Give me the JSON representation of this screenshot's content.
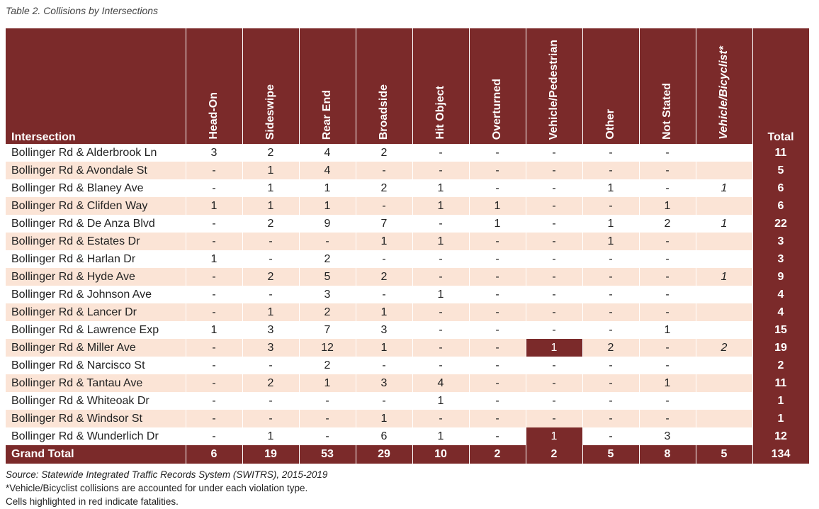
{
  "caption": "Table 2. Collisions by Intersections",
  "headers": {
    "intersection": "Intersection",
    "types": [
      "Head-On",
      "Sideswipe",
      "Rear End",
      "Broadside",
      "Hit Object",
      "Overturned",
      "Vehicle/Pedestrian",
      "Other",
      "Not Stated",
      "Vehicle/Bicyclist*"
    ],
    "total": "Total"
  },
  "rows": [
    {
      "name": "Bollinger Rd & Alderbrook Ln",
      "cells": [
        "3",
        "2",
        "4",
        "2",
        "-",
        "-",
        "-",
        "-",
        "-",
        ""
      ],
      "total": "11"
    },
    {
      "name": "Bollinger Rd & Avondale St",
      "cells": [
        "-",
        "1",
        "4",
        "-",
        "-",
        "-",
        "-",
        "-",
        "-",
        ""
      ],
      "total": "5"
    },
    {
      "name": "Bollinger Rd & Blaney Ave",
      "cells": [
        "-",
        "1",
        "1",
        "2",
        "1",
        "-",
        "-",
        "1",
        "-",
        "1"
      ],
      "total": "6"
    },
    {
      "name": "Bollinger Rd & Clifden Way",
      "cells": [
        "1",
        "1",
        "1",
        "-",
        "1",
        "1",
        "-",
        "-",
        "1",
        ""
      ],
      "total": "6"
    },
    {
      "name": "Bollinger Rd & De Anza Blvd",
      "cells": [
        "-",
        "2",
        "9",
        "7",
        "-",
        "1",
        "-",
        "1",
        "2",
        "1"
      ],
      "total": "22"
    },
    {
      "name": "Bollinger Rd & Estates Dr",
      "cells": [
        "-",
        "-",
        "-",
        "1",
        "1",
        "-",
        "-",
        "1",
        "-",
        ""
      ],
      "total": "3"
    },
    {
      "name": "Bollinger Rd & Harlan Dr",
      "cells": [
        "1",
        "-",
        "2",
        "-",
        "-",
        "-",
        "-",
        "-",
        "-",
        ""
      ],
      "total": "3"
    },
    {
      "name": "Bollinger Rd & Hyde Ave",
      "cells": [
        "-",
        "2",
        "5",
        "2",
        "-",
        "-",
        "-",
        "-",
        "-",
        "1"
      ],
      "total": "9"
    },
    {
      "name": "Bollinger Rd & Johnson Ave",
      "cells": [
        "-",
        "-",
        "3",
        "-",
        "1",
        "-",
        "-",
        "-",
        "-",
        ""
      ],
      "total": "4"
    },
    {
      "name": "Bollinger Rd & Lancer Dr",
      "cells": [
        "-",
        "1",
        "2",
        "1",
        "-",
        "-",
        "-",
        "-",
        "-",
        ""
      ],
      "total": "4"
    },
    {
      "name": "Bollinger Rd & Lawrence Exp",
      "cells": [
        "1",
        "3",
        "7",
        "3",
        "-",
        "-",
        "-",
        "-",
        "1",
        ""
      ],
      "total": "15"
    },
    {
      "name": "Bollinger Rd & Miller Ave",
      "cells": [
        "-",
        "3",
        "12",
        "1",
        "-",
        "-",
        "1",
        "2",
        "-",
        "2"
      ],
      "total": "19",
      "fatal": [
        6
      ]
    },
    {
      "name": "Bollinger Rd & Narcisco St",
      "cells": [
        "-",
        "-",
        "2",
        "-",
        "-",
        "-",
        "-",
        "-",
        "-",
        ""
      ],
      "total": "2"
    },
    {
      "name": "Bollinger Rd & Tantau Ave",
      "cells": [
        "-",
        "2",
        "1",
        "3",
        "4",
        "-",
        "-",
        "-",
        "1",
        ""
      ],
      "total": "11"
    },
    {
      "name": "Bollinger Rd & Whiteoak Dr",
      "cells": [
        "-",
        "-",
        "-",
        "-",
        "1",
        "-",
        "-",
        "-",
        "-",
        ""
      ],
      "total": "1"
    },
    {
      "name": "Bollinger Rd & Windsor St",
      "cells": [
        "-",
        "-",
        "-",
        "1",
        "-",
        "-",
        "-",
        "-",
        "-",
        ""
      ],
      "total": "1"
    },
    {
      "name": "Bollinger Rd & Wunderlich Dr",
      "cells": [
        "-",
        "1",
        "-",
        "6",
        "1",
        "-",
        "1",
        "-",
        "3",
        ""
      ],
      "total": "12",
      "fatal": [
        6
      ]
    }
  ],
  "grand_total": {
    "label": "Grand Total",
    "cells": [
      "6",
      "19",
      "53",
      "29",
      "10",
      "2",
      "2",
      "5",
      "8",
      "5"
    ],
    "total": "134"
  },
  "notes": {
    "source": "Source:  Statewide Integrated Traffic Records System (SWITRS), 2015-2019",
    "bicyclist": "*Vehicle/Bicyclist  collisions  are accounted for under each violation type.",
    "fatalities": "Cells highlighted  in red indicate fatalities."
  },
  "colors": {
    "header": "#7b2a2a",
    "stripe": "#fbe4d6"
  }
}
